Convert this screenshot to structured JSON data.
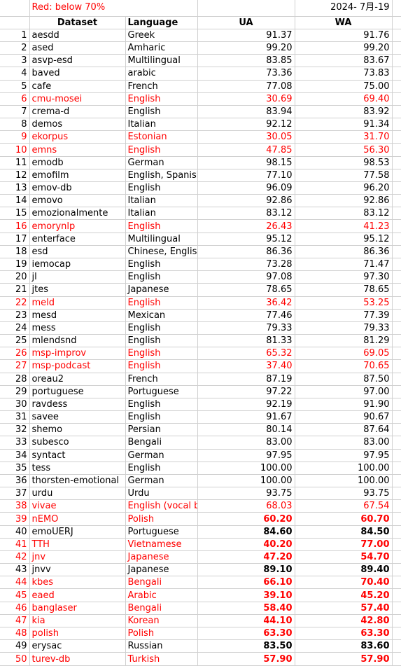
{
  "note": "Red: below 70%",
  "date": "2024- 7月-19",
  "headers": {
    "dataset": "Dataset",
    "language": "Language",
    "ua": "UA",
    "wa": "WA"
  },
  "rows": [
    {
      "n": "1",
      "dataset": "aesdd",
      "language": "Greek",
      "ua": "91.37",
      "wa": "91.76",
      "red": false,
      "bold": false
    },
    {
      "n": "2",
      "dataset": "ased",
      "language": "Amharic",
      "ua": "99.20",
      "wa": "99.20",
      "red": false,
      "bold": false
    },
    {
      "n": "3",
      "dataset": "asvp-esd",
      "language": "Multilingual",
      "ua": "83.85",
      "wa": "83.67",
      "red": false,
      "bold": false
    },
    {
      "n": "4",
      "dataset": "baved",
      "language": "arabic",
      "ua": "73.36",
      "wa": "73.83",
      "red": false,
      "bold": false
    },
    {
      "n": "5",
      "dataset": "cafe",
      "language": "French",
      "ua": "77.08",
      "wa": "75.00",
      "red": false,
      "bold": false
    },
    {
      "n": "6",
      "dataset": "cmu-mosei",
      "language": "English",
      "ua": "30.69",
      "wa": "69.40",
      "red": true,
      "bold": false
    },
    {
      "n": "7",
      "dataset": "crema-d",
      "language": "English",
      "ua": "83.94",
      "wa": "83.92",
      "red": false,
      "bold": false
    },
    {
      "n": "8",
      "dataset": "demos",
      "language": "Italian",
      "ua": "92.12",
      "wa": "91.34",
      "red": false,
      "bold": false
    },
    {
      "n": "9",
      "dataset": "ekorpus",
      "language": "Estonian",
      "ua": "30.05",
      "wa": "31.70",
      "red": true,
      "bold": false
    },
    {
      "n": "10",
      "dataset": "emns",
      "language": "English",
      "ua": "47.85",
      "wa": "56.30",
      "red": true,
      "bold": false
    },
    {
      "n": "11",
      "dataset": "emodb",
      "language": "German",
      "ua": "98.15",
      "wa": "98.53",
      "red": false,
      "bold": false
    },
    {
      "n": "12",
      "dataset": "emofilm",
      "language": "English, Spanish",
      "ua": "77.10",
      "wa": "77.58",
      "red": false,
      "bold": false
    },
    {
      "n": "13",
      "dataset": "emov-db",
      "language": "English",
      "ua": "96.09",
      "wa": "96.20",
      "red": false,
      "bold": false
    },
    {
      "n": "14",
      "dataset": "emovo",
      "language": "Italian",
      "ua": "92.86",
      "wa": "92.86",
      "red": false,
      "bold": false
    },
    {
      "n": "15",
      "dataset": "emozionalmente",
      "language": "Italian",
      "ua": "83.12",
      "wa": "83.12",
      "red": false,
      "bold": false
    },
    {
      "n": "16",
      "dataset": "emorynlp",
      "language": "English",
      "ua": "26.43",
      "wa": "41.23",
      "red": true,
      "bold": false
    },
    {
      "n": "17",
      "dataset": "enterface",
      "language": "Multilingual",
      "ua": "95.12",
      "wa": "95.12",
      "red": false,
      "bold": false
    },
    {
      "n": "18",
      "dataset": "esd",
      "language": "Chinese, English",
      "ua": "86.36",
      "wa": "86.36",
      "red": false,
      "bold": false
    },
    {
      "n": "19",
      "dataset": "iemocap",
      "language": "English",
      "ua": "73.28",
      "wa": "71.47",
      "red": false,
      "bold": false
    },
    {
      "n": "20",
      "dataset": "jl",
      "language": "English",
      "ua": "97.08",
      "wa": "97.30",
      "red": false,
      "bold": false
    },
    {
      "n": "21",
      "dataset": "jtes",
      "language": "Japanese",
      "ua": "78.65",
      "wa": "78.65",
      "red": false,
      "bold": false
    },
    {
      "n": "22",
      "dataset": "meld",
      "language": "English",
      "ua": "36.42",
      "wa": "53.25",
      "red": true,
      "bold": false
    },
    {
      "n": "23",
      "dataset": "mesd",
      "language": "Mexican",
      "ua": "77.46",
      "wa": "77.39",
      "red": false,
      "bold": false
    },
    {
      "n": "24",
      "dataset": "mess",
      "language": "English",
      "ua": "79.33",
      "wa": "79.33",
      "red": false,
      "bold": false
    },
    {
      "n": "25",
      "dataset": "mlendsnd",
      "language": "English",
      "ua": "81.33",
      "wa": "81.29",
      "red": false,
      "bold": false
    },
    {
      "n": "26",
      "dataset": "msp-improv",
      "language": "English",
      "ua": "65.32",
      "wa": "69.05",
      "red": true,
      "bold": false
    },
    {
      "n": "27",
      "dataset": "msp-podcast",
      "language": "English",
      "ua": "37.40",
      "wa": "70.65",
      "red": true,
      "bold": false
    },
    {
      "n": "28",
      "dataset": "oreau2",
      "language": "French",
      "ua": "87.19",
      "wa": "87.50",
      "red": false,
      "bold": false
    },
    {
      "n": "29",
      "dataset": "portuguese",
      "language": "Portuguese",
      "ua": "97.22",
      "wa": "97.00",
      "red": false,
      "bold": false
    },
    {
      "n": "30",
      "dataset": "ravdess",
      "language": "English",
      "ua": "92.19",
      "wa": "91.90",
      "red": false,
      "bold": false
    },
    {
      "n": "31",
      "dataset": "savee",
      "language": "English",
      "ua": "91.67",
      "wa": "90.67",
      "red": false,
      "bold": false
    },
    {
      "n": "32",
      "dataset": "shemo",
      "language": "Persian",
      "ua": "80.14",
      "wa": "87.64",
      "red": false,
      "bold": false
    },
    {
      "n": "33",
      "dataset": "subesco",
      "language": "Bengali",
      "ua": "83.00",
      "wa": "83.00",
      "red": false,
      "bold": false
    },
    {
      "n": "34",
      "dataset": "syntact",
      "language": "German",
      "ua": "97.95",
      "wa": "97.95",
      "red": false,
      "bold": false
    },
    {
      "n": "35",
      "dataset": "tess",
      "language": "English",
      "ua": "100.00",
      "wa": "100.00",
      "red": false,
      "bold": false
    },
    {
      "n": "36",
      "dataset": "thorsten-emotional",
      "language": "German",
      "ua": "100.00",
      "wa": "100.00",
      "red": false,
      "bold": false
    },
    {
      "n": "37",
      "dataset": "urdu",
      "language": "Urdu",
      "ua": "93.75",
      "wa": "93.75",
      "red": false,
      "bold": false
    },
    {
      "n": "38",
      "dataset": "vivae",
      "language": "English (vocal bursts)",
      "ua": "68.03",
      "wa": "67.54",
      "red": true,
      "bold": false
    },
    {
      "n": "39",
      "dataset": "nEMO",
      "language": "Polish",
      "ua": "60.20",
      "wa": "60.70",
      "red": true,
      "bold": true
    },
    {
      "n": "40",
      "dataset": "emoUERJ",
      "language": "Portuguese",
      "ua": "84.60",
      "wa": "84.50",
      "red": false,
      "bold": true
    },
    {
      "n": "41",
      "dataset": "TTH",
      "language": "Vietnamese",
      "ua": "40.20",
      "wa": "77.00",
      "red": true,
      "bold": true
    },
    {
      "n": "42",
      "dataset": "jnv",
      "language": "Japanese",
      "ua": "47.20",
      "wa": "54.70",
      "red": true,
      "bold": true
    },
    {
      "n": "43",
      "dataset": "jnvv",
      "language": "Japanese",
      "ua": "89.10",
      "wa": "89.40",
      "red": false,
      "bold": true
    },
    {
      "n": "44",
      "dataset": "kbes",
      "language": "Bengali",
      "ua": "66.10",
      "wa": "70.40",
      "red": true,
      "bold": true
    },
    {
      "n": "45",
      "dataset": "eaed",
      "language": "Arabic",
      "ua": "39.10",
      "wa": "45.20",
      "red": true,
      "bold": true
    },
    {
      "n": "46",
      "dataset": "banglaser",
      "language": "Bengali",
      "ua": "58.40",
      "wa": "57.40",
      "red": true,
      "bold": true
    },
    {
      "n": "47",
      "dataset": "kia",
      "language": "Korean",
      "ua": "44.10",
      "wa": "42.80",
      "red": true,
      "bold": true
    },
    {
      "n": "48",
      "dataset": "polish",
      "language": "Polish",
      "ua": "63.30",
      "wa": "63.30",
      "red": true,
      "bold": true
    },
    {
      "n": "49",
      "dataset": "erysac",
      "language": "Russian",
      "ua": "83.50",
      "wa": "83.60",
      "red": false,
      "bold": true
    },
    {
      "n": "50",
      "dataset": "turev-db",
      "language": "Turkish",
      "ua": "57.90",
      "wa": "57.90",
      "red": true,
      "bold": true
    }
  ]
}
